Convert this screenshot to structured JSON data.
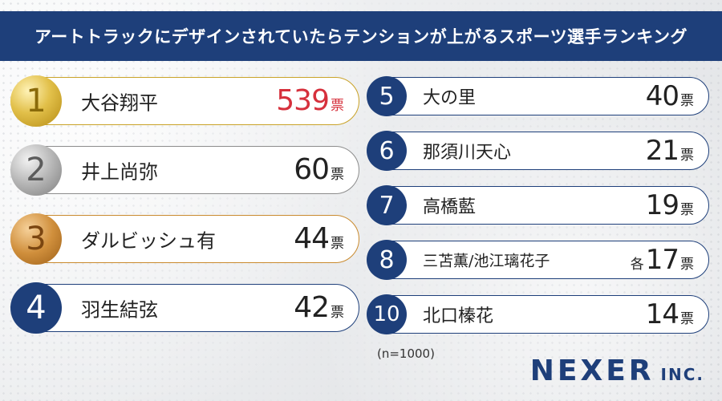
{
  "header": {
    "title": "アートトラックにデザインされていたらテンションが上がるスポーツ選手ランキング"
  },
  "chart_data": {
    "type": "table",
    "title": "アートトラックにデザインされていたらテンションが上がるスポーツ選手ランキング",
    "unit": "票",
    "rows": [
      {
        "rank": "1",
        "name": "大谷翔平",
        "votes": 539,
        "prefix": ""
      },
      {
        "rank": "2",
        "name": "井上尚弥",
        "votes": 60,
        "prefix": ""
      },
      {
        "rank": "3",
        "name": "ダルビッシュ有",
        "votes": 44,
        "prefix": ""
      },
      {
        "rank": "4",
        "name": "羽生結弦",
        "votes": 42,
        "prefix": ""
      },
      {
        "rank": "5",
        "name": "大の里",
        "votes": 40,
        "prefix": ""
      },
      {
        "rank": "6",
        "name": "那須川天心",
        "votes": 21,
        "prefix": ""
      },
      {
        "rank": "7",
        "name": "高橋藍",
        "votes": 19,
        "prefix": ""
      },
      {
        "rank": "8",
        "name": "三苫薫/池江璃花子",
        "votes": 17,
        "prefix": "各"
      },
      {
        "rank": "10",
        "name": "北口榛花",
        "votes": 14,
        "prefix": ""
      }
    ],
    "sample": "(n=1000)"
  },
  "colors": {
    "navy": "#1e3f7a",
    "gold": "#c9a227",
    "silver": "#8c8c8c",
    "bronze": "#c98a2e",
    "highlight": "#d6303c"
  },
  "footer": {
    "logo_main": "NEXER",
    "logo_sub": "INC."
  }
}
